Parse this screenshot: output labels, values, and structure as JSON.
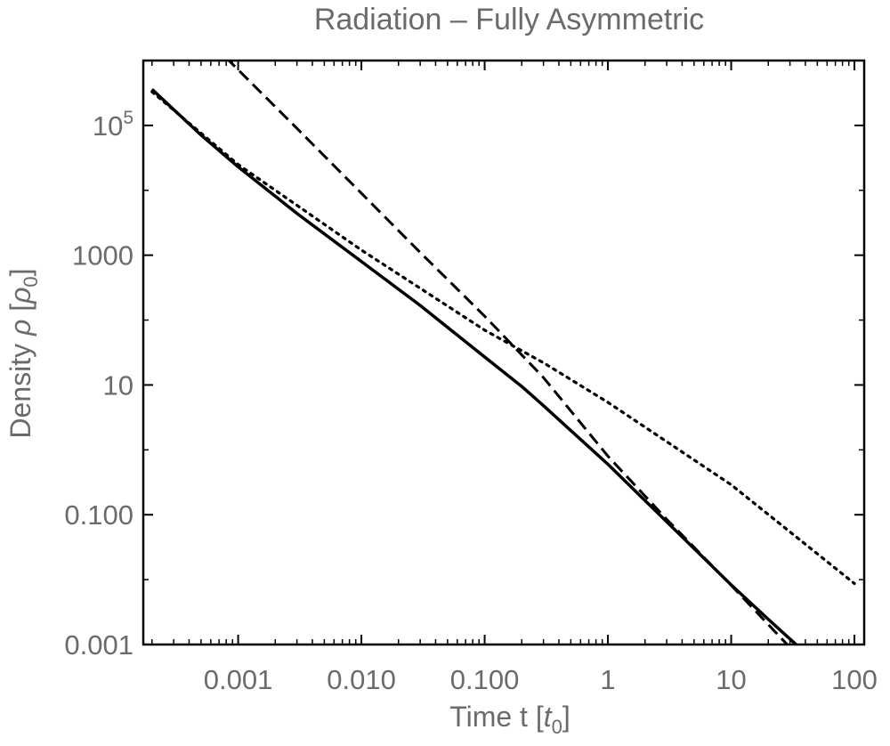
{
  "chart_data": {
    "type": "line",
    "title": "Radiation  – Fully Asymmetric",
    "xlabel": {
      "text": "Time  t [",
      "sym": "t",
      "sub": "0",
      "close": "]"
    },
    "ylabel": {
      "text": "Density  ",
      "sym": "ρ",
      "open": " [",
      "sym2": "ρ",
      "sub": "0",
      "close": "]"
    },
    "x_scale": "log",
    "y_scale": "log",
    "xlim": [
      0.00017,
      120
    ],
    "ylim": [
      0.001,
      1000000
    ],
    "x_ticks": [
      {
        "value": 0.001,
        "label": "0.001"
      },
      {
        "value": 0.01,
        "label": "0.010"
      },
      {
        "value": 0.1,
        "label": "0.100"
      },
      {
        "value": 1,
        "label": "1"
      },
      {
        "value": 10,
        "label": "10"
      },
      {
        "value": 100,
        "label": "100"
      }
    ],
    "y_ticks": [
      {
        "value": 0.001,
        "label": "0.001"
      },
      {
        "value": 0.1,
        "label": "0.100"
      },
      {
        "value": 10,
        "label": "10"
      },
      {
        "value": 1000,
        "label": "1000"
      },
      {
        "value": 100000,
        "label": "10",
        "sup": "5"
      }
    ],
    "grid": false,
    "series": [
      {
        "style": "solid",
        "x": [
          0.0002,
          0.0005,
          0.001,
          0.003,
          0.01,
          0.03,
          0.1,
          0.2,
          0.3,
          1,
          3,
          10,
          20,
          34
        ],
        "y": [
          360000,
          71000,
          23000,
          4400,
          800,
          168,
          27,
          9.5,
          4.8,
          0.6,
          0.078,
          0.0083,
          0.00245,
          0.00098
        ]
      },
      {
        "style": "dashed",
        "x": [
          0.0008,
          0.003,
          0.01,
          0.03,
          0.1,
          0.3,
          1,
          3,
          10,
          30
        ],
        "y": [
          1100000,
          90000,
          9000,
          1100,
          115,
          13,
          0.8,
          0.085,
          0.0082,
          0.0009
        ]
      },
      {
        "style": "dotted",
        "x": [
          0.0002,
          0.001,
          0.01,
          0.1,
          0.3,
          1,
          10,
          100
        ],
        "y": [
          330000,
          25000,
          1200,
          70,
          22,
          5.4,
          0.29,
          0.0087
        ]
      }
    ]
  }
}
